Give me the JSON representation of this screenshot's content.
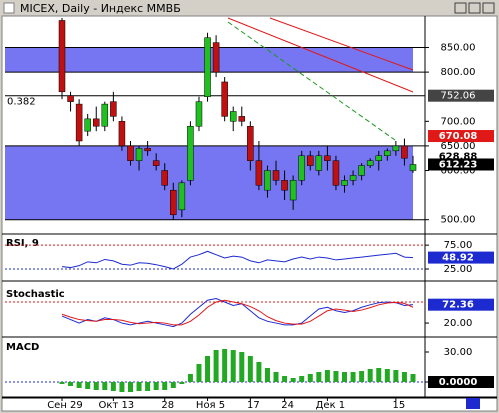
{
  "window_title": "MICEX, Daily - Индекс ММВБ",
  "chart_data": [
    {
      "type": "candlestick",
      "categories": [
        "Сен 29",
        null,
        null,
        null,
        null,
        null,
        "Окт 13",
        null,
        null,
        null,
        null,
        null,
        "28",
        null,
        null,
        null,
        null,
        "Ноя 5",
        null,
        null,
        null,
        null,
        "17",
        null,
        null,
        null,
        "24",
        null,
        null,
        null,
        null,
        "Дек 1",
        null,
        null,
        null,
        null,
        null,
        null,
        null,
        "15",
        null,
        null
      ],
      "open": [
        905,
        752,
        735,
        680,
        705,
        690,
        740,
        700,
        650,
        620,
        645,
        620,
        600,
        560,
        520,
        580,
        690,
        750,
        860,
        780,
        700,
        710,
        690,
        620,
        560,
        600,
        580,
        540,
        580,
        630,
        600,
        630,
        620,
        570,
        580,
        590,
        610,
        620,
        630,
        640,
        650,
        600
      ],
      "high": [
        910,
        760,
        745,
        715,
        730,
        740,
        760,
        710,
        660,
        650,
        660,
        635,
        615,
        575,
        580,
        700,
        750,
        880,
        875,
        790,
        730,
        730,
        700,
        660,
        610,
        620,
        600,
        590,
        640,
        640,
        640,
        650,
        630,
        590,
        600,
        615,
        625,
        640,
        645,
        660,
        665,
        630
      ],
      "low": [
        745,
        720,
        650,
        670,
        680,
        680,
        700,
        640,
        610,
        600,
        630,
        600,
        560,
        500,
        505,
        570,
        680,
        740,
        790,
        700,
        680,
        690,
        600,
        560,
        545,
        570,
        540,
        520,
        570,
        600,
        590,
        600,
        560,
        555,
        570,
        580,
        605,
        600,
        620,
        630,
        610,
        595
      ],
      "close": [
        760,
        740,
        660,
        705,
        690,
        735,
        710,
        650,
        620,
        645,
        640,
        610,
        570,
        510,
        575,
        690,
        740,
        870,
        800,
        710,
        720,
        700,
        620,
        570,
        600,
        580,
        560,
        580,
        630,
        610,
        630,
        620,
        570,
        580,
        590,
        610,
        620,
        630,
        640,
        650,
        625,
        612.23
      ],
      "up_color": "#1fc01f",
      "down_color": "#c01010",
      "band_color": "#7676f2",
      "bands": [
        [
          800,
          850
        ],
        [
          500,
          650
        ]
      ],
      "fib_level": 752.06,
      "fib_label": "0.382",
      "price_markers": [
        670.08,
        628.88
      ],
      "ylim": [
        475,
        910
      ],
      "yticks": [
        {
          "value": 850,
          "label": "850.00"
        },
        {
          "value": 800,
          "label": "800.00"
        },
        {
          "value": 700,
          "label": "700.00"
        },
        {
          "value": 650,
          "label": "650.00"
        },
        {
          "value": 600,
          "label": "600.00"
        },
        {
          "value": 500,
          "label": "500.00"
        }
      ]
    },
    {
      "type": "line",
      "title": "RSI, 9",
      "series": [
        {
          "color": "#1c2ad0",
          "values": [
            30,
            28,
            32,
            40,
            38,
            45,
            42,
            35,
            33,
            38,
            37,
            34,
            30,
            25,
            35,
            50,
            55,
            62,
            55,
            48,
            52,
            50,
            42,
            38,
            44,
            42,
            40,
            46,
            50,
            46,
            50,
            48,
            44,
            46,
            48,
            50,
            52,
            54,
            56,
            58,
            50,
            48.92
          ]
        }
      ],
      "ylim": [
        4,
        90
      ],
      "yticks": [
        {
          "value": 75,
          "label": "75.00"
        },
        {
          "value": 25,
          "label": "25.00"
        }
      ]
    },
    {
      "type": "line",
      "title": "Stochastic",
      "series": [
        {
          "color": "#1c2ad0",
          "values": [
            40,
            30,
            20,
            30,
            25,
            35,
            30,
            20,
            15,
            20,
            25,
            20,
            15,
            10,
            20,
            45,
            65,
            85,
            90,
            80,
            70,
            75,
            55,
            35,
            25,
            20,
            15,
            15,
            20,
            40,
            60,
            65,
            55,
            50,
            55,
            65,
            72,
            78,
            80,
            78,
            70,
            72.36
          ]
        },
        {
          "color": "#e01818",
          "values": [
            45,
            37,
            30,
            27,
            25,
            30,
            30,
            28,
            22,
            18,
            20,
            22,
            20,
            15,
            15,
            25,
            43,
            65,
            80,
            85,
            80,
            75,
            67,
            55,
            38,
            27,
            20,
            17,
            17,
            25,
            40,
            55,
            60,
            57,
            53,
            57,
            64,
            72,
            77,
            79,
            76,
            65
          ]
        }
      ],
      "ref_lines": [
        80
      ],
      "ylim": [
        -14,
        117
      ],
      "yticks": [
        {
          "value": 20,
          "label": "20.00"
        }
      ]
    },
    {
      "type": "bar",
      "title": "MACD",
      "color": "#22a822",
      "values": [
        -2,
        -4,
        -6,
        -7,
        -8,
        -8,
        -9,
        -10,
        -10,
        -9,
        -9,
        -8,
        -8,
        -6,
        -2,
        8,
        18,
        26,
        32,
        33,
        32,
        30,
        26,
        20,
        14,
        10,
        6,
        4,
        6,
        8,
        10,
        12,
        11,
        10,
        10,
        11,
        13,
        14,
        13,
        12,
        10,
        8
      ],
      "ylim": [
        -14,
        40
      ],
      "yticks": [
        {
          "value": 30,
          "label": "30.00"
        },
        {
          "value": 0,
          "label": "0.0000"
        }
      ]
    }
  ]
}
